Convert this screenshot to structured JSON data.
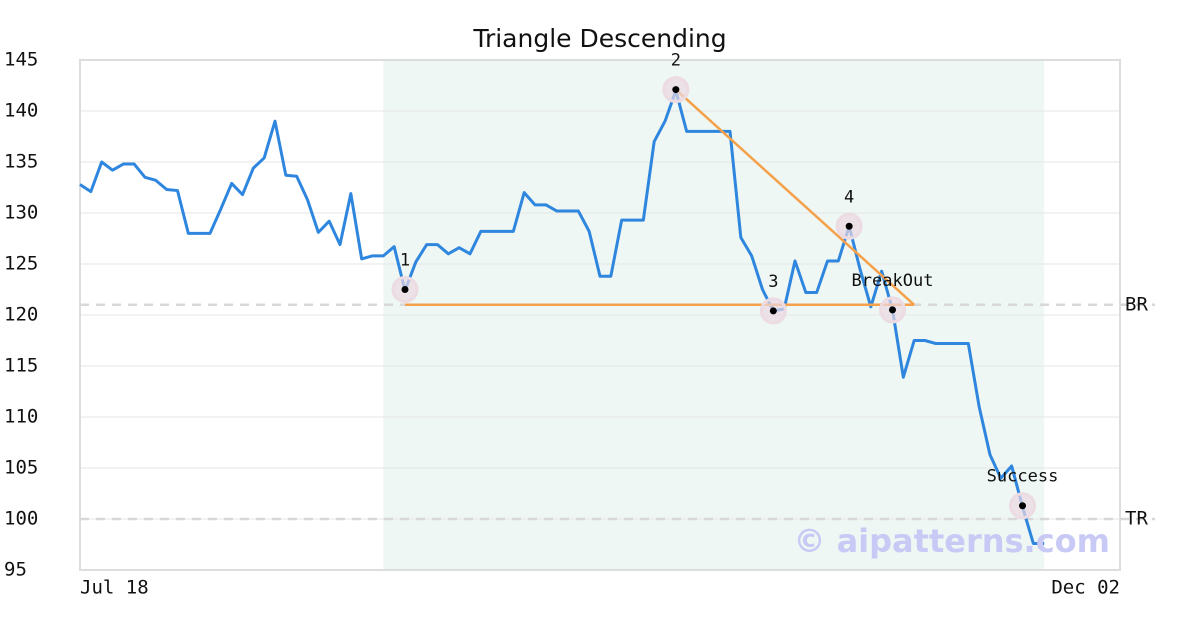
{
  "chart_data": {
    "type": "line",
    "title": "Triangle Descending",
    "categories": [
      "Jul 18",
      null,
      null,
      null,
      null,
      null,
      null,
      null,
      null,
      null,
      null,
      null,
      null,
      null,
      null,
      null,
      null,
      null,
      null,
      null,
      null,
      null,
      null,
      null,
      null,
      null,
      null,
      null,
      null,
      null,
      null,
      null,
      null,
      null,
      null,
      null,
      null,
      null,
      null,
      null,
      null,
      null,
      null,
      null,
      null,
      null,
      null,
      null,
      null,
      null,
      null,
      null,
      null,
      null,
      null,
      null,
      null,
      null,
      null,
      null,
      null,
      null,
      null,
      null,
      null,
      null,
      null,
      null,
      null,
      null,
      null,
      null,
      null,
      null,
      null,
      null,
      null,
      null,
      null,
      null,
      null,
      null,
      null,
      null,
      null,
      null,
      null,
      null,
      null,
      null,
      null,
      null,
      null,
      null,
      null,
      null,
      "Dec 02"
    ],
    "series": [
      {
        "color": "#2e86de",
        "values": [
          132.8,
          132.1,
          135,
          134.2,
          134.8,
          134.8,
          133.5,
          133.2,
          132.3,
          132.2,
          128,
          128,
          128,
          130.4,
          132.9,
          131.8,
          134.4,
          135.4,
          139,
          133.7,
          133.6,
          131.3,
          128.1,
          129.2,
          126.9,
          131.9,
          125.5,
          125.8,
          125.8,
          126.7,
          122.4,
          125.2,
          126.9,
          126.9,
          126,
          126.6,
          126,
          128.2,
          128.2,
          128.2,
          128.2,
          132,
          130.8,
          130.8,
          130.2,
          130.2,
          130.2,
          128.2,
          123.8,
          123.8,
          129.3,
          129.3,
          129.3,
          137,
          139,
          142,
          138,
          138,
          138,
          138,
          138,
          127.6,
          125.8,
          122.5,
          120.4,
          120.6,
          125.3,
          122.2,
          122.2,
          125.3,
          125.3,
          128.7,
          124.5,
          120.8,
          124.3,
          120.5,
          113.9,
          117.5,
          117.5,
          117.2,
          117.2,
          117.2,
          117.2,
          111,
          106.3,
          104,
          105.2,
          101.2,
          97.6,
          97.6,
          null,
          null,
          null,
          null,
          null,
          null,
          null
        ]
      }
    ],
    "points": [
      {
        "label": "1",
        "x": 30,
        "value": 122.5
      },
      {
        "label": "2",
        "x": 55,
        "value": 142.1
      },
      {
        "label": "3",
        "x": 64,
        "value": 120.4
      },
      {
        "label": "4",
        "x": 71,
        "value": 128.7
      },
      {
        "label": "BreakOut",
        "x": 75,
        "value": 120.5
      },
      {
        "label": "Success",
        "x": 87,
        "value": 101.3
      }
    ],
    "pattern_lines": [
      {
        "color": "#f5a04a",
        "x": [
          55,
          77
        ],
        "values": [
          142.1,
          121
        ]
      },
      {
        "color": "#f5a04a",
        "x": [
          30,
          77
        ],
        "values": [
          121,
          121
        ]
      }
    ],
    "levels": [
      {
        "label": "BR",
        "value": 121
      },
      {
        "label": "TR",
        "value": 100
      }
    ],
    "shade": [
      28,
      89
    ],
    "shade_color": "#eef7f3",
    "watermark": "© aipatterns.com",
    "ylim": [
      95,
      145
    ],
    "yticks": [
      95,
      100,
      105,
      110,
      115,
      120,
      125,
      130,
      135,
      140,
      145
    ],
    "grid": true
  }
}
